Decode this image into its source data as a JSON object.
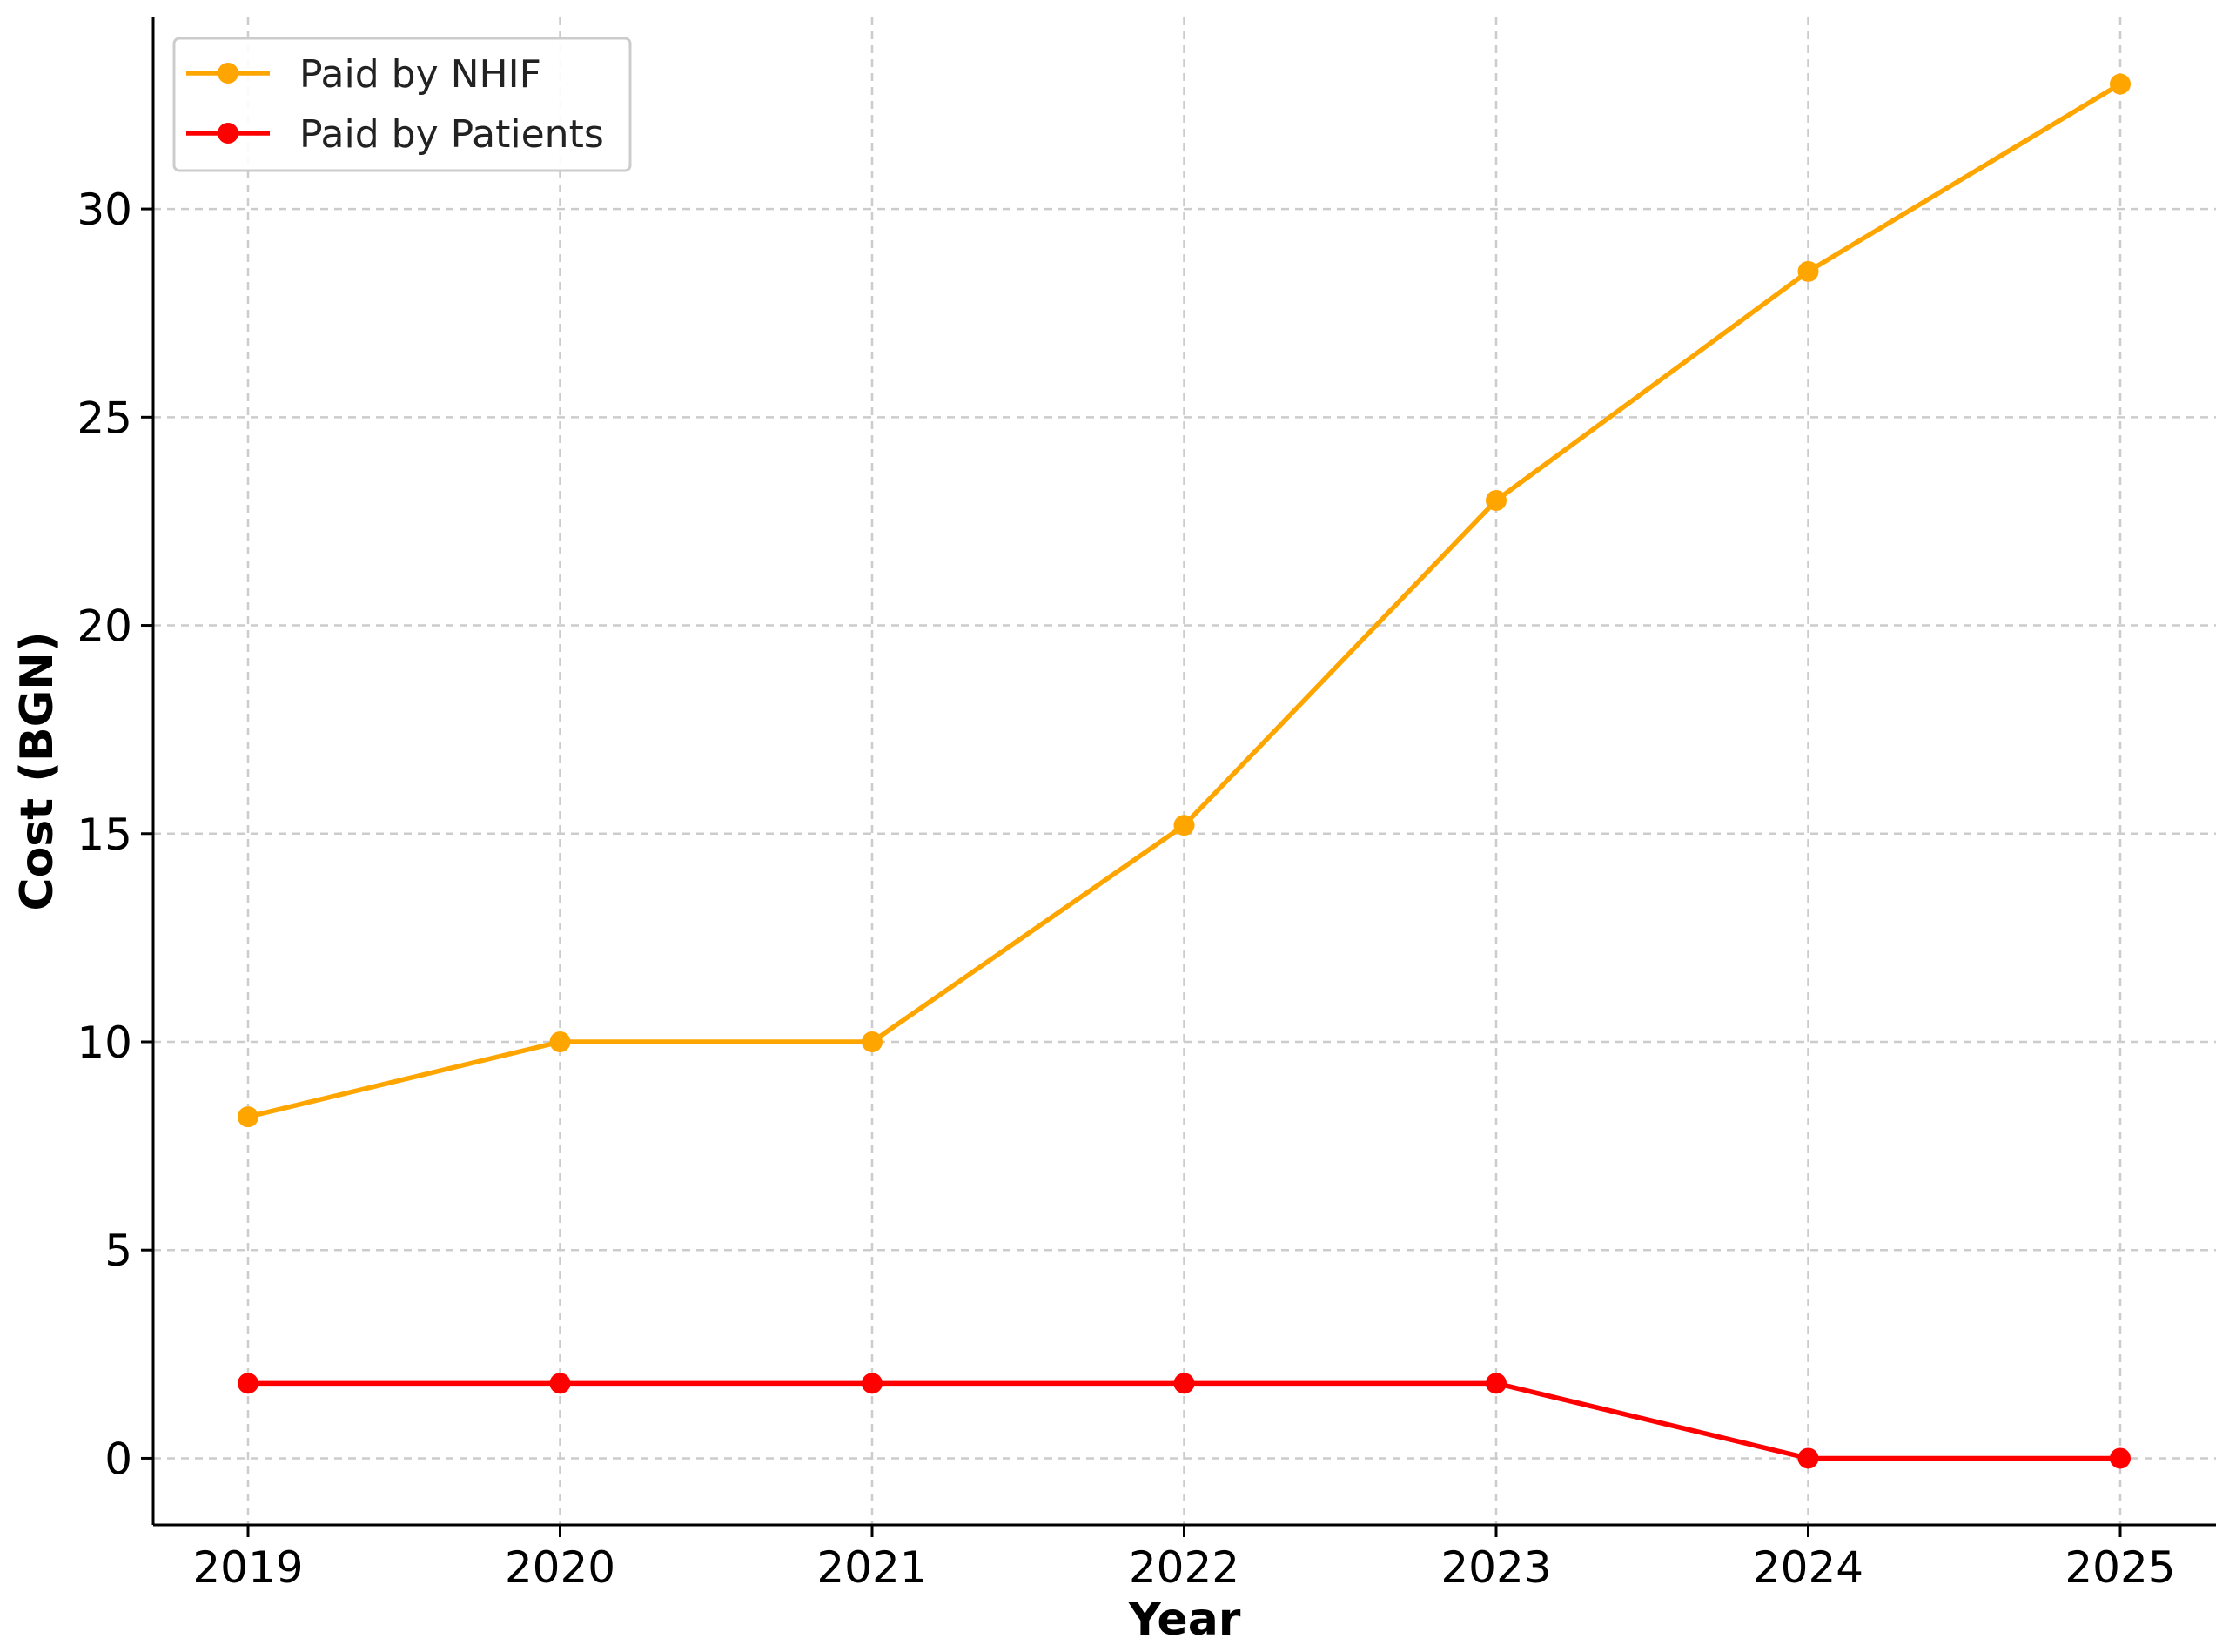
{
  "chart_data": {
    "type": "line",
    "title": "",
    "xlabel": "Year",
    "ylabel": "Cost (BGN)",
    "categories": [
      "2019",
      "2020",
      "2021",
      "2022",
      "2023",
      "2024",
      "2025"
    ],
    "yticks": [
      "0",
      "5",
      "10",
      "15",
      "20",
      "25",
      "30"
    ],
    "ylim": [
      -1.6,
      34.6
    ],
    "grid": true,
    "legend_position": "top-left",
    "series": [
      {
        "name": "Paid by NHIF",
        "color": "#FFA500",
        "values": [
          8.2,
          10.0,
          10.0,
          15.2,
          23.0,
          28.5,
          33.0
        ]
      },
      {
        "name": "Paid by Patients",
        "color": "#FF0000",
        "values": [
          1.8,
          1.8,
          1.8,
          1.8,
          1.8,
          0.0,
          0.0
        ]
      }
    ]
  }
}
